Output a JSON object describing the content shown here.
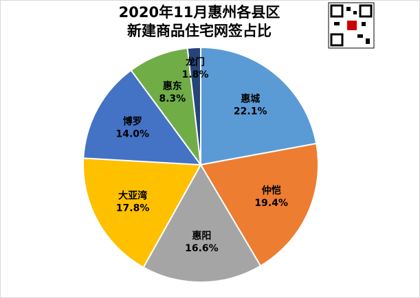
{
  "chart_data": {
    "type": "pie",
    "title": [
      "2020年11月惠州各县区",
      "新建商品住宅网签占比"
    ],
    "categories": [
      "惠城",
      "仲恺",
      "惠阳",
      "大亚湾",
      "博罗",
      "惠东",
      "龙门"
    ],
    "values": [
      22.1,
      19.4,
      16.6,
      17.8,
      14.0,
      8.3,
      1.8
    ],
    "value_labels": [
      "22.1%",
      "19.4%",
      "16.6%",
      "17.8%",
      "14.0%",
      "8.3%",
      "1.8%"
    ],
    "colors": [
      "#5b9bd5",
      "#ed7d31",
      "#a5a5a5",
      "#ffc000",
      "#4472c4",
      "#70ad47",
      "#264478"
    ]
  }
}
